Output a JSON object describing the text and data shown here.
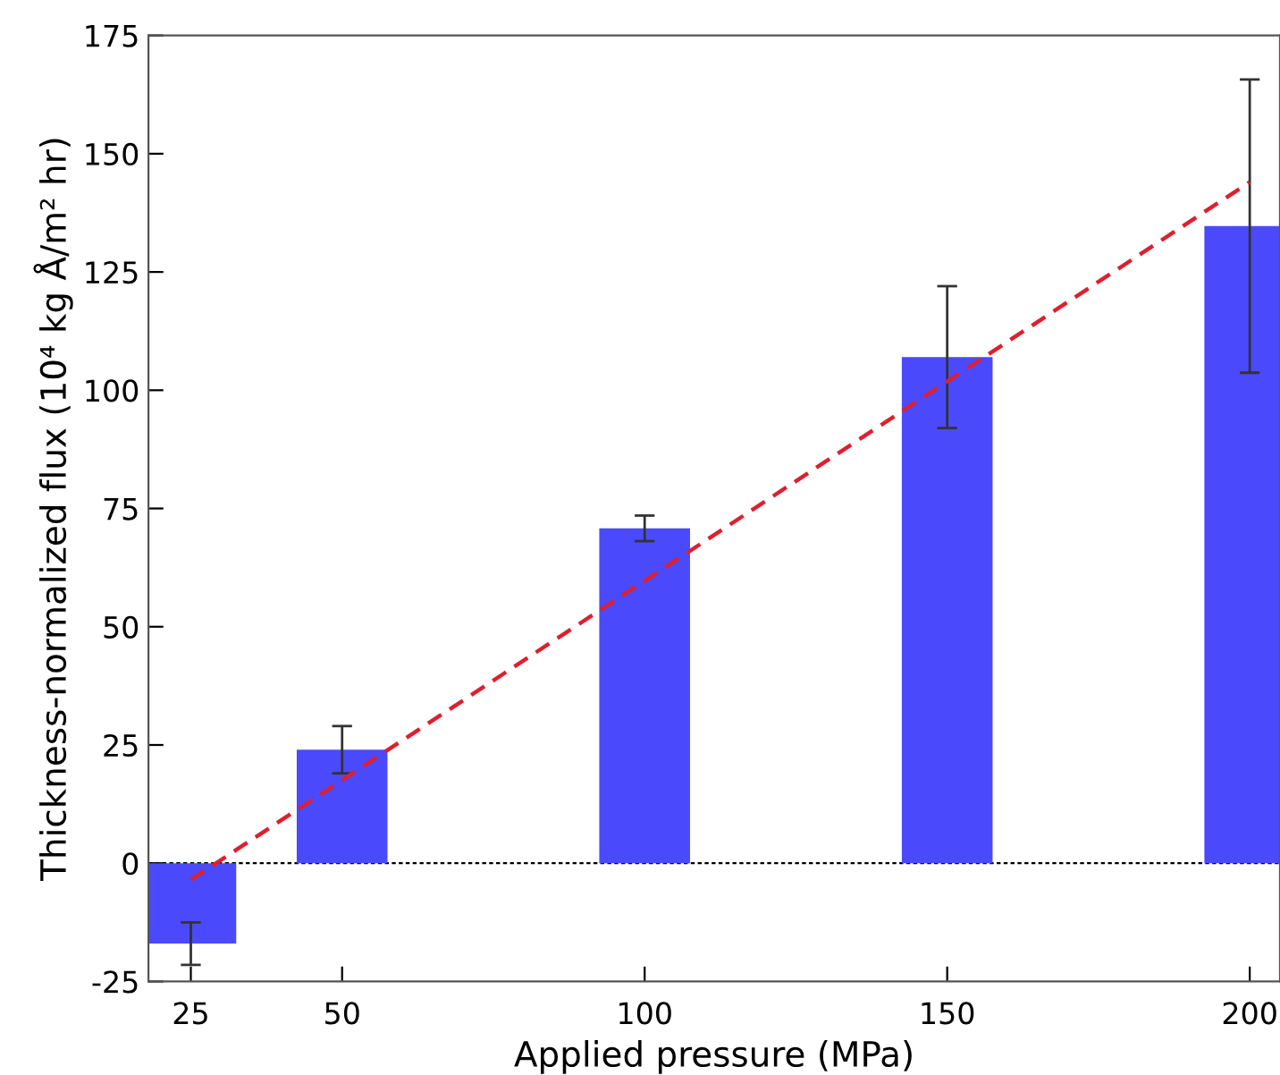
{
  "chart_data": {
    "type": "bar",
    "xlabel": "Applied pressure (MPa)",
    "ylabel": "Thickness-normalized flux (10⁴ kg Å/m² hr)",
    "x": [
      25,
      50,
      100,
      150,
      200
    ],
    "series": [
      {
        "color": "#4a4afc",
        "values": [
          -17,
          24,
          70.8,
          107,
          134.7
        ],
        "errors": [
          4.5,
          5,
          2.7,
          15,
          31
        ]
      },
      {
        "type": "line",
        "color": "#dd2030",
        "line_style": "dashed",
        "x": [
          25,
          200
        ],
        "values": [
          -3.5,
          144
        ]
      }
    ],
    "ref_lines": [
      {
        "axis": "y",
        "value": 0,
        "color": "#000000",
        "line_style": "dotted"
      }
    ],
    "xlim": [
      18,
      205
    ],
    "xticks": [
      25,
      50,
      100,
      150,
      200
    ],
    "ylim": [
      -25,
      175
    ],
    "yticks": [
      -25,
      0,
      25,
      50,
      75,
      100,
      125,
      150,
      175
    ],
    "grid": false,
    "legend": false
  }
}
